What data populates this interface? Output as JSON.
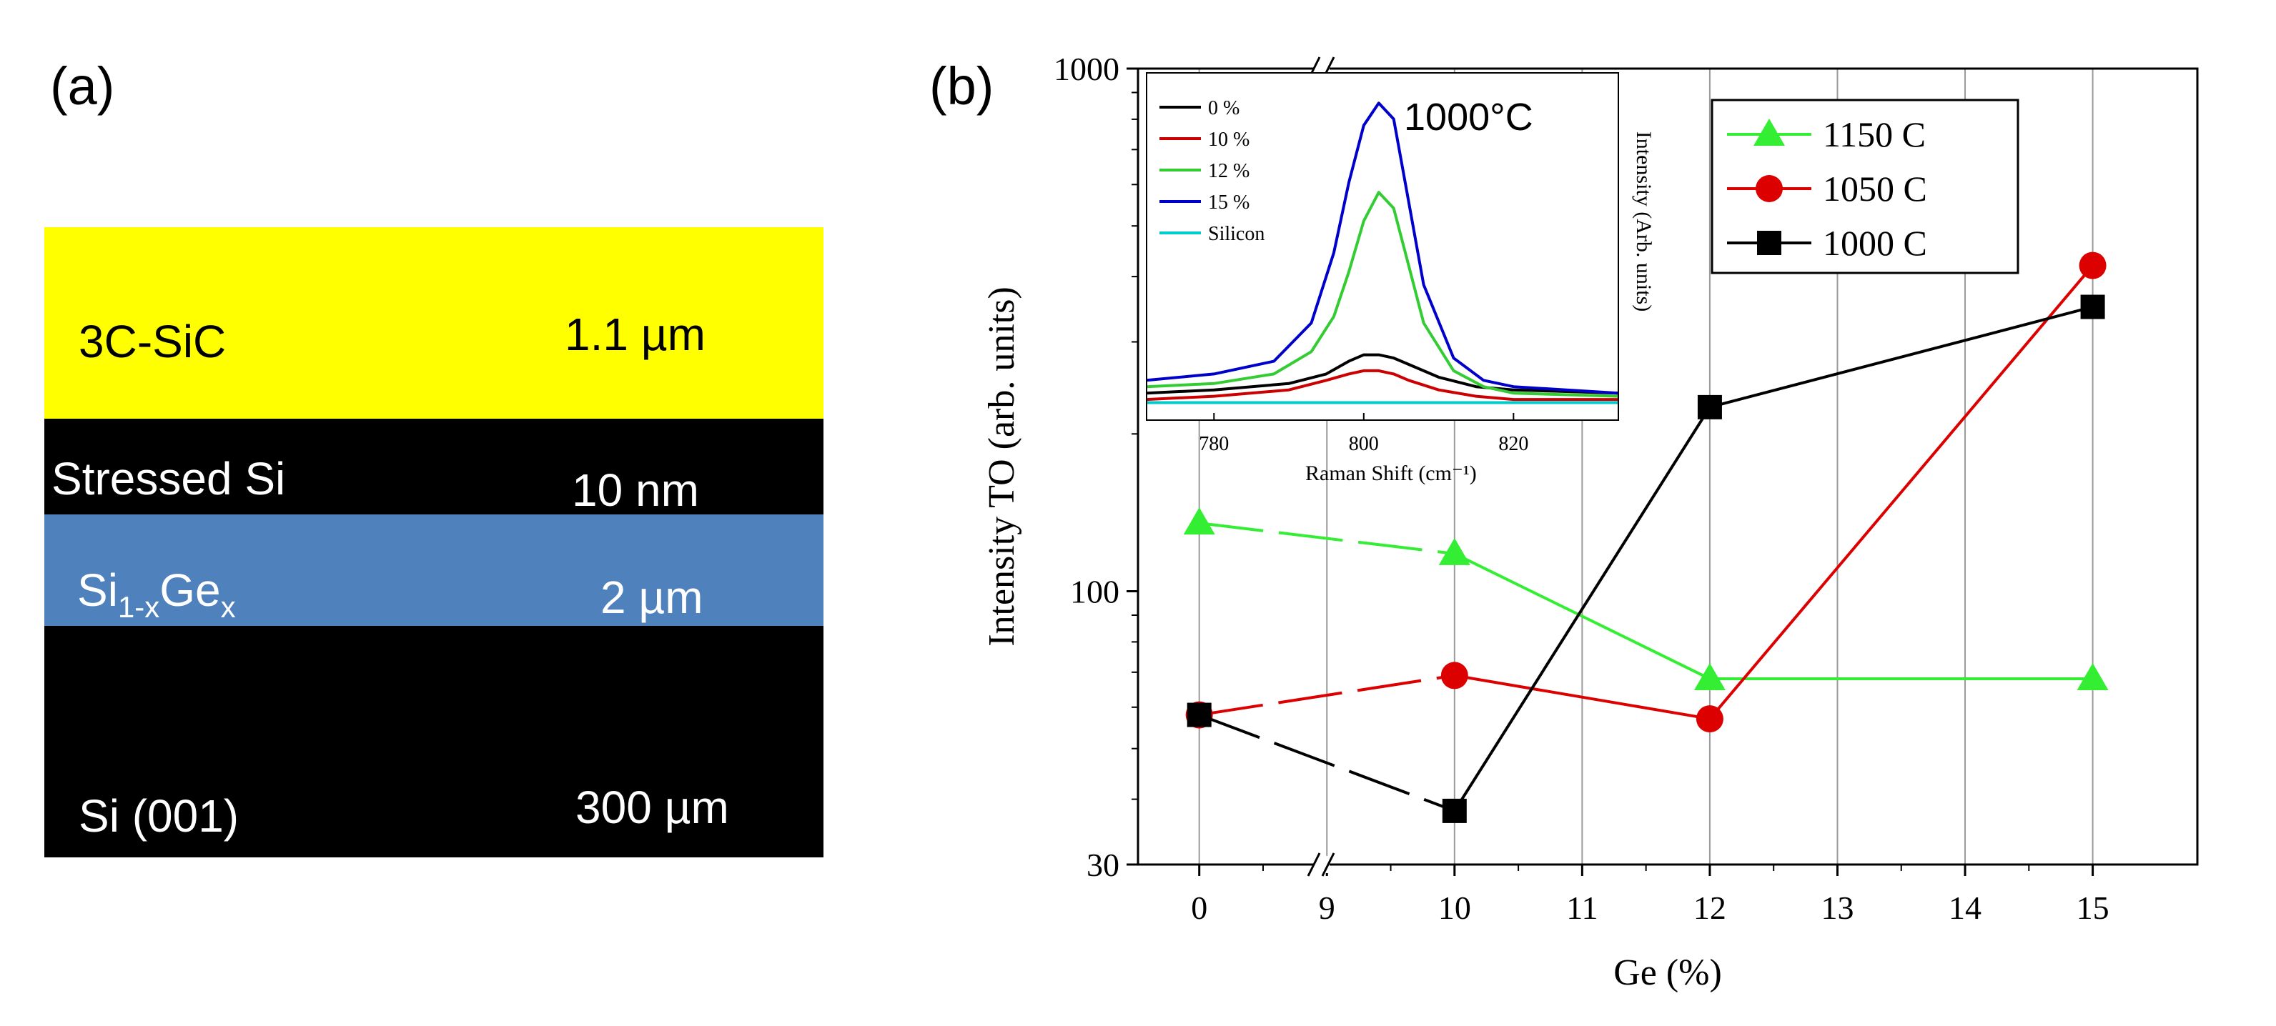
{
  "panel_a": {
    "label": "(a)",
    "layers": [
      {
        "name": "3C-SiC",
        "thickness": "1.1 µm",
        "color": "#ffff00",
        "text_color": "#000000"
      },
      {
        "name": "Stressed Si",
        "thickness": "10 nm",
        "color": "#000000",
        "text_color": "#ffffff"
      },
      {
        "name_main": "Si",
        "name_sub1": "1-x",
        "name_mid": "Ge",
        "name_sub2": "x",
        "thickness": "2 µm",
        "color": "#4f81bd",
        "text_color": "#ffffff"
      },
      {
        "name": "Si (001)",
        "thickness": "300 µm",
        "color": "#000000",
        "text_color": "#ffffff"
      }
    ]
  },
  "chart_data": [
    {
      "type": "line",
      "panel_label": "(b)",
      "xlabel": "Ge (%)",
      "ylabel": "Intensity TO (arb. units)",
      "yscale": "log",
      "ylim": [
        30,
        1000
      ],
      "yticks": [
        "30",
        "100",
        "1000"
      ],
      "x_categories": [
        "0",
        "9",
        "10",
        "11",
        "12",
        "13",
        "14",
        "15"
      ],
      "grid": "vertical",
      "legend_position": "top-right",
      "series": [
        {
          "name": "1150 C",
          "color": "#33ee33",
          "marker": "triangle",
          "x": [
            "0",
            "10",
            "12",
            "15"
          ],
          "y": [
            135,
            118,
            68,
            68
          ]
        },
        {
          "name": "1050 C",
          "color": "#dd0000",
          "marker": "circle",
          "x": [
            "0",
            "10",
            "12",
            "15"
          ],
          "y": [
            58,
            69,
            57,
            420
          ]
        },
        {
          "name": "1000 C",
          "color": "#000000",
          "marker": "square",
          "x": [
            "0",
            "10",
            "12",
            "15"
          ],
          "y": [
            58,
            38,
            225,
            350
          ]
        }
      ]
    },
    {
      "type": "line",
      "title": "1000°C",
      "xlabel": "Raman Shift (cm⁻¹)",
      "ylabel": "Intensity (Arb. units)",
      "xlim": [
        771,
        834
      ],
      "ylim": [
        0,
        1
      ],
      "xticks": [
        "780",
        "800",
        "820"
      ],
      "legend_position": "top-left",
      "series": [
        {
          "name": "0 %",
          "color": "#000000",
          "x": [
            771,
            780,
            790,
            795,
            798,
            800,
            802,
            804,
            806,
            810,
            815,
            820,
            834
          ],
          "y": [
            0.04,
            0.05,
            0.07,
            0.1,
            0.14,
            0.16,
            0.16,
            0.15,
            0.13,
            0.09,
            0.06,
            0.05,
            0.04
          ]
        },
        {
          "name": "10 %",
          "color": "#cc0000",
          "x": [
            771,
            780,
            790,
            795,
            798,
            800,
            802,
            804,
            806,
            810,
            815,
            820,
            834
          ],
          "y": [
            0.02,
            0.03,
            0.05,
            0.08,
            0.1,
            0.11,
            0.11,
            0.1,
            0.08,
            0.05,
            0.03,
            0.02,
            0.02
          ]
        },
        {
          "name": "12 %",
          "color": "#33cc33",
          "x": [
            771,
            780,
            788,
            793,
            796,
            798,
            800,
            802,
            804,
            806,
            808,
            812,
            816,
            820,
            834
          ],
          "y": [
            0.06,
            0.07,
            0.1,
            0.17,
            0.28,
            0.42,
            0.58,
            0.67,
            0.62,
            0.44,
            0.26,
            0.11,
            0.06,
            0.04,
            0.03
          ]
        },
        {
          "name": "15 %",
          "color": "#0000cc",
          "x": [
            771,
            780,
            788,
            793,
            796,
            798,
            800,
            802,
            804,
            806,
            808,
            812,
            816,
            820,
            834
          ],
          "y": [
            0.08,
            0.1,
            0.14,
            0.26,
            0.48,
            0.7,
            0.88,
            0.95,
            0.9,
            0.64,
            0.38,
            0.15,
            0.08,
            0.06,
            0.04
          ]
        },
        {
          "name": "Silicon",
          "color": "#00cccc",
          "x": [
            771,
            800,
            834
          ],
          "y": [
            0.01,
            0.01,
            0.01
          ]
        }
      ]
    }
  ]
}
